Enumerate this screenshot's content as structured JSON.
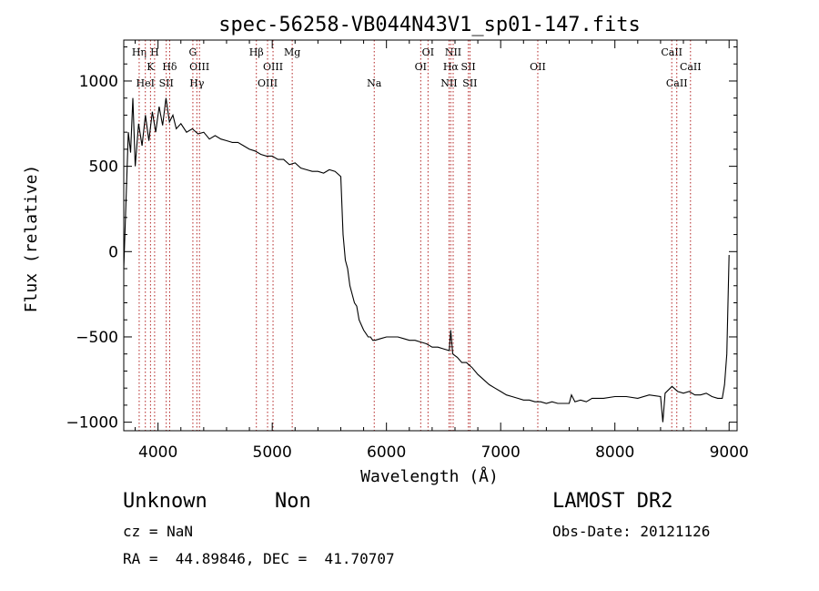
{
  "chart_data": {
    "type": "line",
    "title": "spec-56258-VB044N43V1_sp01-147.fits",
    "xlabel": "Wavelength (Å)",
    "ylabel": "Flux (relative)",
    "xlim": [
      3700,
      9070
    ],
    "ylim": [
      -1050,
      1240
    ],
    "xticks": [
      4000,
      5000,
      6000,
      7000,
      8000,
      9000
    ],
    "yticks": [
      -1000,
      -500,
      0,
      500,
      1000
    ],
    "xtick_labels": [
      "4000",
      "5000",
      "6000",
      "7000",
      "8000",
      "9000"
    ],
    "ytick_labels": [
      "−1000",
      "−500",
      "0",
      "500",
      "1000"
    ],
    "grid": false,
    "line_color": "#000000",
    "marker_color": "#b22222",
    "spectrum": {
      "x": [
        3700,
        3720,
        3740,
        3760,
        3780,
        3800,
        3830,
        3860,
        3890,
        3920,
        3950,
        3980,
        4010,
        4040,
        4070,
        4100,
        4130,
        4160,
        4200,
        4250,
        4300,
        4350,
        4400,
        4450,
        4500,
        4550,
        4600,
        4650,
        4700,
        4750,
        4800,
        4850,
        4900,
        4950,
        5000,
        5050,
        5100,
        5150,
        5200,
        5250,
        5300,
        5350,
        5400,
        5450,
        5500,
        5550,
        5600,
        5620,
        5640,
        5660,
        5680,
        5700,
        5720,
        5740,
        5760,
        5780,
        5800,
        5820,
        5840,
        5860,
        5880,
        5900,
        5950,
        6000,
        6050,
        6100,
        6150,
        6200,
        6250,
        6300,
        6350,
        6400,
        6450,
        6500,
        6550,
        6563,
        6580,
        6620,
        6660,
        6700,
        6750,
        6800,
        6850,
        6900,
        6950,
        7000,
        7050,
        7100,
        7150,
        7200,
        7250,
        7300,
        7350,
        7400,
        7450,
        7500,
        7550,
        7600,
        7620,
        7650,
        7700,
        7750,
        7800,
        7900,
        8000,
        8100,
        8200,
        8300,
        8400,
        8420,
        8440,
        8500,
        8550,
        8600,
        8650,
        8700,
        8750,
        8800,
        8850,
        8900,
        8940,
        8960,
        8980,
        9000
      ],
      "y": [
        -100,
        300,
        700,
        580,
        900,
        500,
        750,
        620,
        800,
        650,
        820,
        700,
        850,
        740,
        900,
        760,
        800,
        720,
        750,
        700,
        720,
        690,
        700,
        660,
        680,
        660,
        650,
        640,
        640,
        620,
        600,
        590,
        570,
        560,
        560,
        540,
        540,
        510,
        520,
        490,
        480,
        470,
        470,
        460,
        480,
        470,
        440,
        100,
        -50,
        -100,
        -200,
        -250,
        -300,
        -320,
        -400,
        -430,
        -460,
        -480,
        -500,
        -500,
        -520,
        -520,
        -510,
        -500,
        -500,
        -500,
        -510,
        -520,
        -520,
        -530,
        -540,
        -560,
        -560,
        -570,
        -580,
        -460,
        -600,
        -620,
        -650,
        -650,
        -680,
        -720,
        -750,
        -780,
        -800,
        -820,
        -840,
        -850,
        -860,
        -870,
        -870,
        -880,
        -880,
        -890,
        -880,
        -890,
        -890,
        -890,
        -840,
        -880,
        -870,
        -880,
        -860,
        -860,
        -850,
        -850,
        -860,
        -840,
        -850,
        -1000,
        -830,
        -790,
        -820,
        -830,
        -820,
        -840,
        -840,
        -830,
        -850,
        -860,
        -860,
        -780,
        -600,
        -20
      ]
    },
    "line_markers": [
      {
        "name": "Hη",
        "x": 3835,
        "row": 1
      },
      {
        "name": "H",
        "x": 3970,
        "row": 1
      },
      {
        "name": "G",
        "x": 4305,
        "row": 1
      },
      {
        "name": "Hβ",
        "x": 4861,
        "row": 1
      },
      {
        "name": "Mg",
        "x": 5175,
        "row": 1
      },
      {
        "name": "OI",
        "x": 6364,
        "row": 1
      },
      {
        "name": "NII",
        "x": 6584,
        "row": 1
      },
      {
        "name": "CaII",
        "x": 8498,
        "row": 1
      },
      {
        "name": "K",
        "x": 3934,
        "row": 2
      },
      {
        "name": "Hδ",
        "x": 4102,
        "row": 2
      },
      {
        "name": "OIII",
        "x": 4363,
        "row": 2
      },
      {
        "name": "OIII",
        "x": 5007,
        "row": 2
      },
      {
        "name": "OI",
        "x": 6300,
        "row": 2
      },
      {
        "name": "Hα",
        "x": 6563,
        "row": 2
      },
      {
        "name": "SII",
        "x": 6717,
        "row": 2
      },
      {
        "name": "OII",
        "x": 7325,
        "row": 2
      },
      {
        "name": "CaII",
        "x": 8662,
        "row": 2
      },
      {
        "name": "HeI",
        "x": 3889,
        "row": 3
      },
      {
        "name": "SII",
        "x": 4072,
        "row": 3
      },
      {
        "name": "Hγ",
        "x": 4340,
        "row": 3
      },
      {
        "name": "OIII",
        "x": 4959,
        "row": 3
      },
      {
        "name": "Na",
        "x": 5893,
        "row": 3
      },
      {
        "name": "NII",
        "x": 6548,
        "row": 3
      },
      {
        "name": "SII",
        "x": 6731,
        "row": 3
      },
      {
        "name": "CaII",
        "x": 8542,
        "row": 3
      }
    ]
  },
  "info": {
    "class_label": "Unknown",
    "subclass_label": "Non",
    "survey_label": "LAMOST DR2",
    "redshift_text": "cz = NaN",
    "obs_date_text": "Obs-Date: 20121126",
    "coords_text": "RA =  44.89846, DEC =  41.70707"
  }
}
